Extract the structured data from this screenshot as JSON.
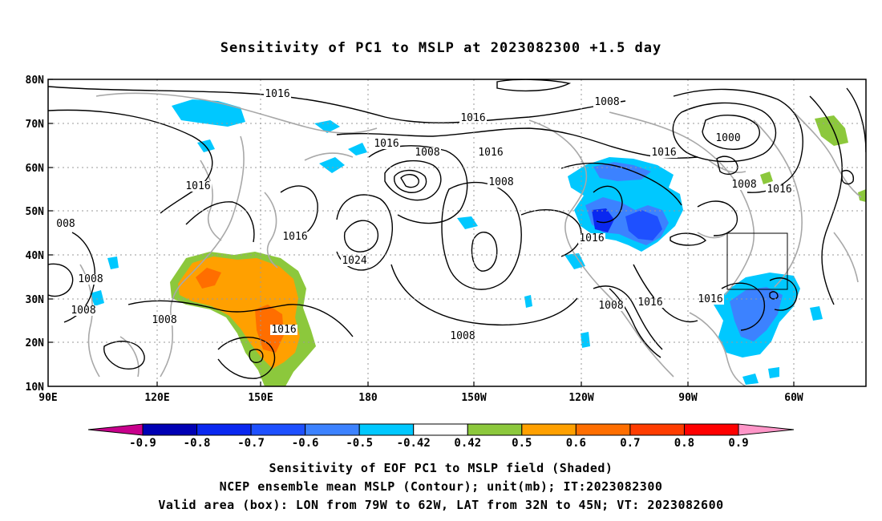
{
  "title": "Sensitivity of PC1 to MSLP at 2023082300 +1.5 day",
  "axes": {
    "y_ticks": [
      "80N",
      "70N",
      "60N",
      "50N",
      "40N",
      "30N",
      "20N",
      "10N"
    ],
    "x_ticks": [
      "90E",
      "120E",
      "150E",
      "180",
      "150W",
      "120W",
      "90W",
      "60W"
    ]
  },
  "colorbar": {
    "labels": [
      "-0.9",
      "-0.8",
      "-0.7",
      "-0.6",
      "-0.5",
      "-0.42",
      "0.42",
      "0.5",
      "0.6",
      "0.7",
      "0.8",
      "0.9"
    ],
    "colors": [
      "#0000b4",
      "#0a28f0",
      "#1e50ff",
      "#3c82ff",
      "#00c8ff",
      "#ffffff",
      "#8cc83c",
      "#ffa000",
      "#ff6e00",
      "#ff3c00",
      "#ff0000"
    ],
    "low_end_color": "#c8008c",
    "high_end_color": "#ff96c8"
  },
  "contour_labels": [
    "1016",
    "1008",
    "1016",
    "1016",
    "1008",
    "1016",
    "1016",
    "1000",
    "1008",
    "1016",
    "008",
    "1016",
    "1008",
    "1024",
    "1016",
    "1008",
    "1008",
    "1008",
    "1016",
    "1008",
    "1016",
    "1016",
    "1008",
    "1016"
  ],
  "captions": {
    "line1": "Sensitivity of EOF PC1 to MSLP field (Shaded)",
    "line2": "NCEP ensemble mean MSLP (Contour); unit(mb); IT:2023082300",
    "line3": "Valid area (box): LON from 79W to 62W, LAT from 32N to 45N; VT: 2023082600"
  }
}
